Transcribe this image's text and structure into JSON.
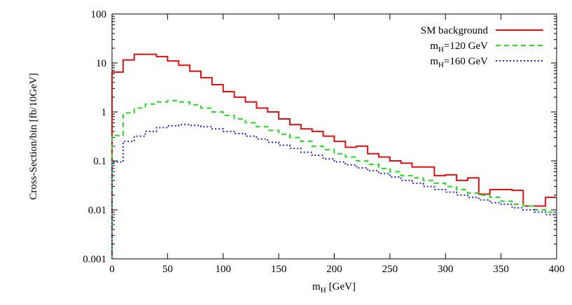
{
  "chart_data": {
    "type": "line",
    "title": "",
    "xlabel": "[GeV]",
    "xlabel_symbol": "m",
    "xlabel_sub": "H",
    "ylabel": "Cross-Section/bin [fb/10GeV]",
    "xlim": [
      0,
      400
    ],
    "ylim": [
      0.001,
      100
    ],
    "yscale": "log",
    "x_ticks": [
      0,
      50,
      100,
      150,
      200,
      250,
      300,
      350,
      400
    ],
    "y_ticks": [
      0.001,
      0.01,
      0.1,
      1,
      10,
      100
    ],
    "y_tick_labels": [
      "0.001",
      "0.01",
      "0.1",
      "1",
      "10",
      "100"
    ],
    "grid": false,
    "legend_position": "top-right",
    "bin_edges": [
      0,
      10,
      20,
      30,
      40,
      50,
      60,
      70,
      80,
      90,
      100,
      110,
      120,
      130,
      140,
      150,
      160,
      170,
      180,
      190,
      200,
      210,
      220,
      230,
      240,
      250,
      260,
      270,
      280,
      290,
      300,
      310,
      320,
      330,
      340,
      350,
      360,
      370,
      380,
      390,
      400
    ],
    "series": [
      {
        "name": "SM background",
        "legend_symbol": "",
        "legend_sub": "",
        "legend_rest": "SM background",
        "color": "#e01010",
        "dash": "",
        "values": [
          6.5,
          11.5,
          15,
          15,
          13.5,
          11,
          9,
          6.8,
          5,
          3.6,
          2.6,
          2.0,
          1.6,
          1.2,
          1.0,
          0.72,
          0.55,
          0.45,
          0.4,
          0.32,
          0.25,
          0.19,
          0.2,
          0.14,
          0.12,
          0.1,
          0.09,
          0.075,
          0.075,
          0.05,
          0.052,
          0.04,
          0.045,
          0.021,
          0.026,
          0.026,
          0.025,
          0.012,
          0.012,
          0.018
        ]
      },
      {
        "name": "m_H=120 GeV",
        "legend_symbol": "m",
        "legend_sub": "H",
        "legend_rest": "=120 GeV",
        "color": "#22dd22",
        "dash": "7,5",
        "values": [
          0.33,
          0.95,
          1.2,
          1.45,
          1.6,
          1.7,
          1.6,
          1.4,
          1.2,
          1.0,
          0.85,
          0.72,
          0.6,
          0.5,
          0.42,
          0.35,
          0.3,
          0.25,
          0.2,
          0.17,
          0.14,
          0.12,
          0.1,
          0.085,
          0.07,
          0.06,
          0.05,
          0.045,
          0.04,
          0.035,
          0.03,
          0.026,
          0.022,
          0.02,
          0.018,
          0.015,
          0.013,
          0.012,
          0.01,
          0.009
        ]
      },
      {
        "name": "m_H=160 GeV",
        "legend_symbol": "m",
        "legend_sub": "H",
        "legend_rest": "=160 GeV",
        "color": "#2222ee",
        "dash": "2,3",
        "values": [
          0.095,
          0.25,
          0.32,
          0.4,
          0.48,
          0.52,
          0.55,
          0.53,
          0.5,
          0.45,
          0.4,
          0.36,
          0.32,
          0.28,
          0.24,
          0.21,
          0.18,
          0.15,
          0.13,
          0.11,
          0.095,
          0.083,
          0.072,
          0.063,
          0.055,
          0.047,
          0.04,
          0.035,
          0.03,
          0.026,
          0.023,
          0.02,
          0.018,
          0.016,
          0.014,
          0.013,
          0.011,
          0.01,
          0.009,
          0.008
        ]
      }
    ]
  }
}
